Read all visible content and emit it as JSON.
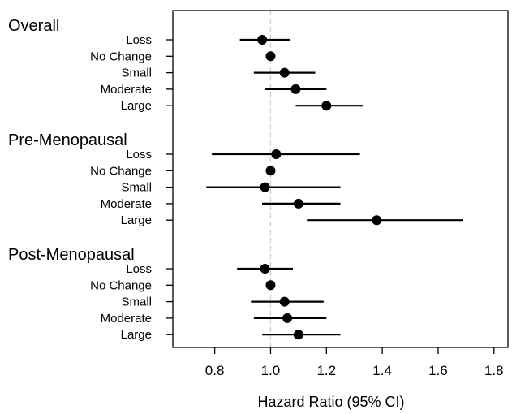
{
  "chart_data": {
    "type": "forest",
    "xlabel": "Hazard Ratio (95% CI)",
    "xlim": [
      0.65,
      1.85
    ],
    "xticks": [
      0.8,
      1.0,
      1.2,
      1.4,
      1.6,
      1.8
    ],
    "xtick_labels": [
      "0.8",
      "1.0",
      "1.2",
      "1.4",
      "1.6",
      "1.8"
    ],
    "reference_line": {
      "x": 1.0,
      "style": "dashed",
      "color": "#cccccc"
    },
    "point_color": "#000000",
    "groups": [
      {
        "name": "Overall",
        "rows": [
          {
            "label": "Loss",
            "hr": 0.97,
            "lo": 0.89,
            "hi": 1.07
          },
          {
            "label": "No Change",
            "hr": 1.0,
            "lo": 1.0,
            "hi": 1.0
          },
          {
            "label": "Small",
            "hr": 1.05,
            "lo": 0.94,
            "hi": 1.16
          },
          {
            "label": "Moderate",
            "hr": 1.09,
            "lo": 0.98,
            "hi": 1.2
          },
          {
            "label": "Large",
            "hr": 1.2,
            "lo": 1.09,
            "hi": 1.33
          }
        ]
      },
      {
        "name": "Pre-Menopausal",
        "rows": [
          {
            "label": "Loss",
            "hr": 1.02,
            "lo": 0.79,
            "hi": 1.32
          },
          {
            "label": "No Change",
            "hr": 1.0,
            "lo": 1.0,
            "hi": 1.0
          },
          {
            "label": "Small",
            "hr": 0.98,
            "lo": 0.77,
            "hi": 1.25
          },
          {
            "label": "Moderate",
            "hr": 1.1,
            "lo": 0.97,
            "hi": 1.25
          },
          {
            "label": "Large",
            "hr": 1.38,
            "lo": 1.13,
            "hi": 1.69
          }
        ]
      },
      {
        "name": "Post-Menopausal",
        "rows": [
          {
            "label": "Loss",
            "hr": 0.98,
            "lo": 0.88,
            "hi": 1.08
          },
          {
            "label": "No Change",
            "hr": 1.0,
            "lo": 1.0,
            "hi": 1.0
          },
          {
            "label": "Small",
            "hr": 1.05,
            "lo": 0.93,
            "hi": 1.19
          },
          {
            "label": "Moderate",
            "hr": 1.06,
            "lo": 0.94,
            "hi": 1.2
          },
          {
            "label": "Large",
            "hr": 1.1,
            "lo": 0.97,
            "hi": 1.25
          }
        ]
      }
    ]
  }
}
